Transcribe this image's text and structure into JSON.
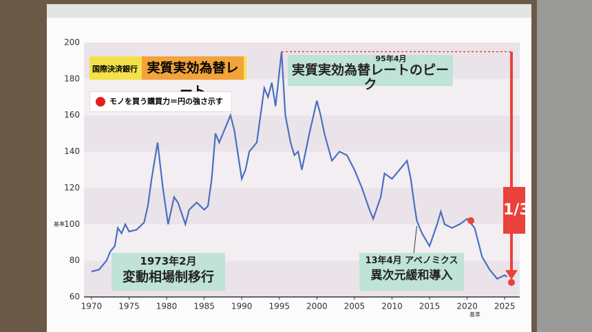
{
  "chart_data": {
    "type": "line",
    "source_label": "国際決済銀行",
    "title": "実質実効為替レート",
    "subtitle": "モノを買う購買力＝円の強さ示す",
    "baseline_label_y": "基準",
    "baseline_label_x": "基準",
    "annotations": [
      {
        "label": "95年4月",
        "text": "実質実効為替レートのピーク"
      },
      {
        "label": "1973年2月",
        "text": "変動相場制移行"
      },
      {
        "label": "13年4月 アベノミクス",
        "text": "異次元緩和導入"
      },
      {
        "text": "1/3"
      }
    ],
    "x": [
      1970,
      1971,
      1972,
      1972.5,
      1973.1,
      1973.5,
      1974,
      1974.5,
      1975,
      1976,
      1977,
      1977.5,
      1978,
      1978.8,
      1979.5,
      1980.2,
      1981,
      1981.5,
      1982.5,
      1983,
      1984,
      1985,
      1985.5,
      1986,
      1986.5,
      1987,
      1988,
      1988.5,
      1989,
      1990,
      1990.5,
      1991,
      1992,
      1993,
      1993.5,
      1994,
      1994.5,
      1995.3,
      1995.8,
      1996.5,
      1997,
      1997.5,
      1998,
      1999,
      2000,
      2000.5,
      2001,
      2002,
      2003,
      2004,
      2005,
      2006,
      2007,
      2007.5,
      2008.5,
      2009,
      2010,
      2011,
      2012,
      2012.5,
      2013,
      2013.3,
      2014,
      2015,
      2016,
      2016.5,
      2017,
      2018,
      2019,
      2020,
      2021,
      2022,
      2023,
      2024,
      2025,
      2025.3
    ],
    "series": [
      {
        "name": "実質実効為替レート",
        "color": "#4a6fc0",
        "values": [
          74,
          75,
          80,
          85,
          88,
          98,
          95,
          100,
          96,
          97,
          101,
          110,
          125,
          145,
          120,
          100,
          115,
          112,
          100,
          108,
          112,
          108,
          110,
          125,
          150,
          145,
          155,
          160,
          152,
          125,
          130,
          140,
          145,
          175,
          170,
          178,
          165,
          195,
          160,
          145,
          138,
          140,
          130,
          150,
          168,
          160,
          150,
          135,
          140,
          138,
          130,
          120,
          108,
          103,
          115,
          128,
          125,
          130,
          135,
          125,
          110,
          102,
          95,
          88,
          100,
          107,
          100,
          98,
          100,
          103,
          98,
          82,
          75,
          70,
          72,
          71
        ]
      }
    ],
    "markers": [
      {
        "x": 2020.5,
        "y": 102,
        "color": "#e8423a"
      },
      {
        "x": 2025.9,
        "y": 68,
        "color": "#e8423a"
      }
    ],
    "xlim": [
      1969,
      2027
    ],
    "xticks": [
      1970,
      1975,
      1980,
      1985,
      1990,
      1995,
      2000,
      2005,
      2010,
      2015,
      2020,
      2025
    ],
    "ylim": [
      60,
      200
    ],
    "yticks": [
      60,
      80,
      100,
      120,
      140,
      160,
      180,
      200
    ],
    "grid": true,
    "accent_color": "#e8423a"
  }
}
